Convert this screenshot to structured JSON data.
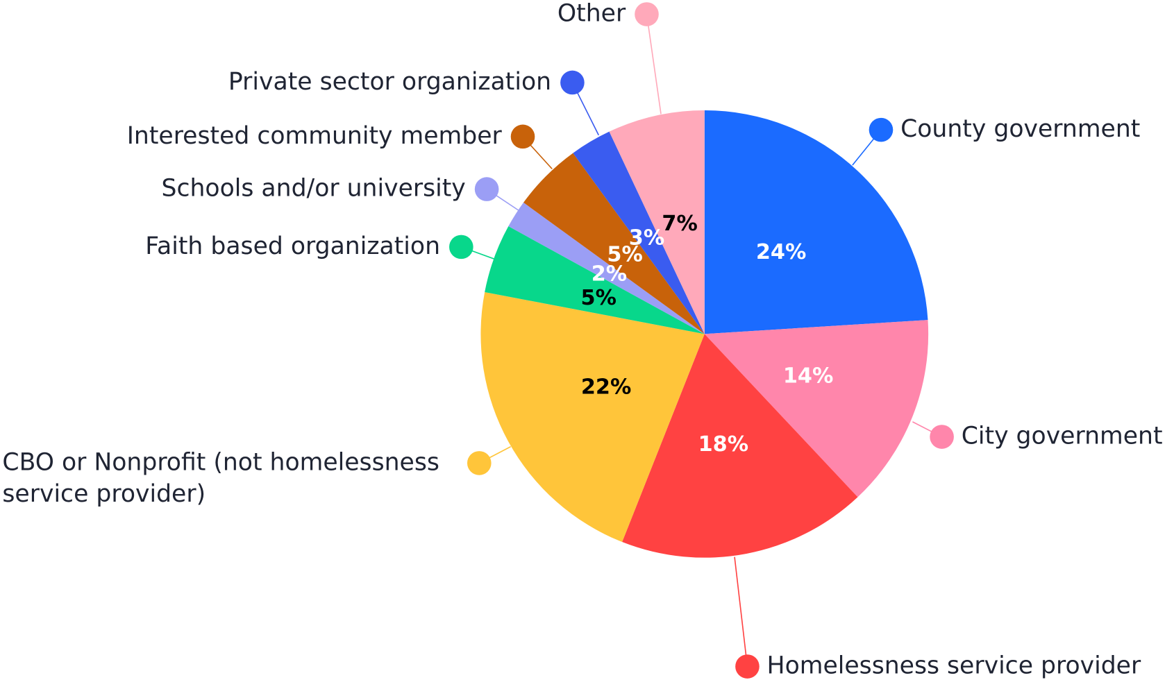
{
  "chart_data": {
    "type": "pie",
    "categories": [
      "County government",
      "City government",
      "Homelessness service provider",
      "CBO or Nonprofit (not homelessness service provider)",
      "Faith based organization",
      "Schools and/or university",
      "Interested community member",
      "Private sector organization",
      "Other"
    ],
    "values": [
      24,
      14,
      18,
      22,
      5,
      2,
      5,
      3,
      7
    ],
    "value_labels": [
      "24%",
      "14%",
      "18%",
      "22%",
      "5%",
      "2%",
      "5%",
      "3%",
      "7%"
    ],
    "colors": [
      "#1b6bff",
      "#ff86ab",
      "#ff4242",
      "#ffc53a",
      "#08d78b",
      "#9b9ef5",
      "#c8620a",
      "#3a5cf0",
      "#ffa9ba"
    ],
    "value_label_colors": [
      "#ffffff",
      "#ffffff",
      "#ffffff",
      "#000000",
      "#000000",
      "#ffffff",
      "#ffffff",
      "#ffffff",
      "#000000"
    ]
  }
}
